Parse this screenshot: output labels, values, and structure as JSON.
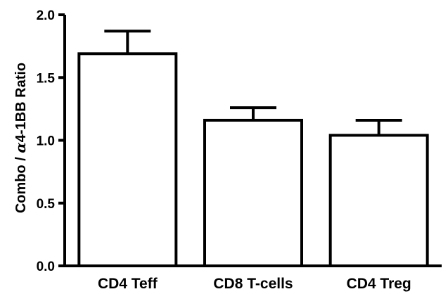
{
  "chart_data": {
    "type": "bar",
    "title": "",
    "xlabel": "",
    "ylabel_prefix": "Combo / ",
    "ylabel_symbol": "α",
    "ylabel_suffix": "4-1BB Ratio",
    "categories": [
      "CD4 Teff",
      "CD8 T-cells",
      "CD4 Treg"
    ],
    "values": [
      1.69,
      1.16,
      1.04
    ],
    "error_upper": [
      0.18,
      0.1,
      0.12
    ],
    "ylim": [
      0.0,
      2.0
    ],
    "yticks": [
      0.0,
      0.5,
      1.0,
      1.5,
      2.0
    ],
    "ytick_labels": [
      "0.0",
      "0.5",
      "1.0",
      "1.5",
      "2.0"
    ],
    "grid": false,
    "legend": "none",
    "bar_fill": "#ffffff",
    "bar_stroke": "#000000"
  }
}
